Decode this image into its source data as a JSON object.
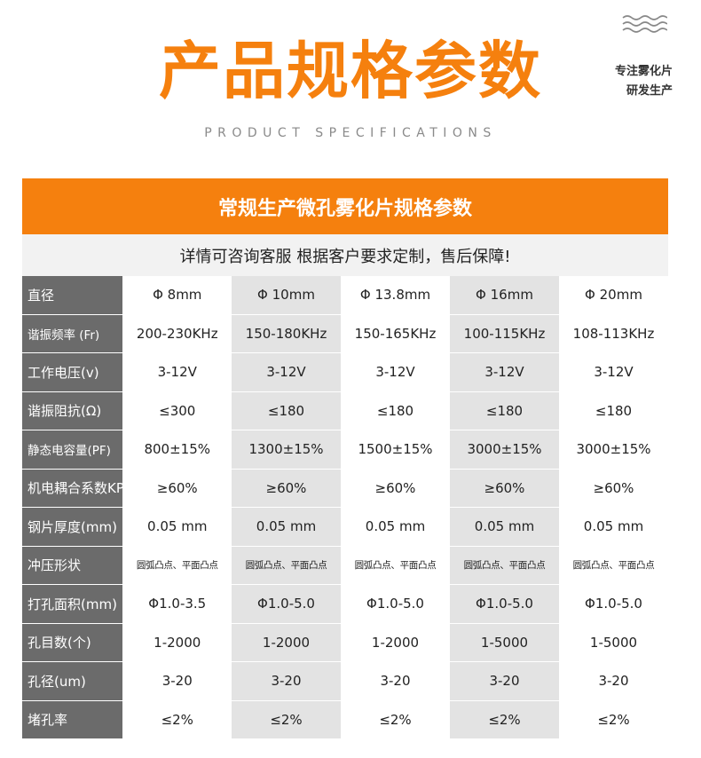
{
  "header": {
    "title": "产品规格参数",
    "subtitle": "PRODUCT SPECIFICATIONS",
    "side_note_line1": "专注雾化片",
    "side_note_line2": "研发生产",
    "wave_icon": "wave-lines-icon"
  },
  "banner": {
    "text": "常规生产微孔雾化片规格参数"
  },
  "notice": {
    "text": "详情可咨询客服 根据客户要求定制，售后保障!"
  },
  "colors": {
    "accent": "#f5800e",
    "label_bg": "#6b6b6b",
    "shade_bg": "#e3e3e3"
  },
  "specs": {
    "rows": [
      {
        "label": "直径",
        "values": [
          "Φ 8mm",
          "Φ 10mm",
          "Φ 13.8mm",
          "Φ 16mm",
          "Φ 20mm"
        ]
      },
      {
        "label": "谐振频率 (Fr)",
        "values": [
          "200-230KHz",
          "150-180KHz",
          "150-165KHz",
          "100-115KHz",
          "108-113KHz"
        ]
      },
      {
        "label": "工作电压(v)",
        "values": [
          "3-12V",
          "3-12V",
          "3-12V",
          "3-12V",
          "3-12V"
        ]
      },
      {
        "label": "谐振阻抗(Ω)",
        "values": [
          "≤300",
          "≤180",
          "≤180",
          "≤180",
          "≤180"
        ]
      },
      {
        "label": "静态电容量(PF)",
        "values": [
          "800±15%",
          "1300±15%",
          "1500±15%",
          "3000±15%",
          "3000±15%"
        ]
      },
      {
        "label": "机电耦合系数KP",
        "values": [
          "≥60%",
          "≥60%",
          "≥60%",
          "≥60%",
          "≥60%"
        ]
      },
      {
        "label": "钢片厚度(mm)",
        "values": [
          "0.05 mm",
          "0.05 mm",
          "0.05 mm",
          "0.05 mm",
          "0.05 mm"
        ]
      },
      {
        "label": "冲压形状",
        "values": [
          "圆弧凸点、平面凸点",
          "圆弧凸点、平面凸点",
          "圆弧凸点、平面凸点",
          "圆弧凸点、平面凸点",
          "圆弧凸点、平面凸点"
        ]
      },
      {
        "label": "打孔面积(mm)",
        "values": [
          "Φ1.0-3.5",
          "Φ1.0-5.0",
          "Φ1.0-5.0",
          "Φ1.0-5.0",
          "Φ1.0-5.0"
        ]
      },
      {
        "label": "孔目数(个)",
        "values": [
          "1-2000",
          "1-2000",
          "1-2000",
          "1-5000",
          "1-5000"
        ]
      },
      {
        "label": "孔径(um)",
        "values": [
          "3-20",
          "3-20",
          "3-20",
          "3-20",
          "3-20"
        ]
      },
      {
        "label": "堵孔率",
        "values": [
          "≤2%",
          "≤2%",
          "≤2%",
          "≤2%",
          "≤2%"
        ]
      }
    ]
  }
}
